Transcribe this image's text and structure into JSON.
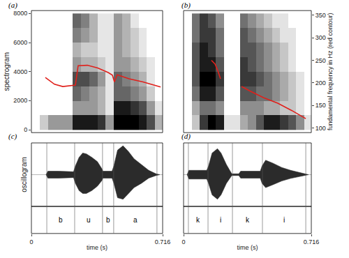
{
  "chart_data": [
    {
      "title": "(a)",
      "type": "spectrogram",
      "ylabel": "spectrogram",
      "x": [
        0.0225,
        0.0675,
        0.1125,
        0.1575,
        0.2025,
        0.2475,
        0.2925,
        0.3375,
        0.3825,
        0.4275,
        0.4725,
        0.5175,
        0.5625,
        0.6075,
        0.6525,
        0.6975
      ],
      "y": [
        500,
        1500,
        2500,
        3500,
        4500,
        5500,
        6500,
        7500
      ],
      "cells": [
        [
          0,
          0.2,
          0.4,
          0.4,
          0.4,
          0.9,
          0.9,
          0.9,
          0.8,
          0.4,
          1,
          1,
          1,
          0.9,
          0.7,
          0.3
        ],
        [
          0,
          0,
          0,
          0,
          0,
          0.4,
          0.4,
          0.4,
          0.3,
          0.1,
          0.9,
          0.9,
          0.8,
          0.7,
          0.4,
          0.1
        ],
        [
          0,
          0,
          0,
          0,
          0,
          0.6,
          0.5,
          0.4,
          0.3,
          0.1,
          0.6,
          0.6,
          0.5,
          0.4,
          0.2,
          0
        ],
        [
          0,
          0,
          0,
          0,
          0,
          0.7,
          0.7,
          0.6,
          0.4,
          0.1,
          0.6,
          0.5,
          0.4,
          0.3,
          0.1,
          0
        ],
        [
          0,
          0,
          0,
          0,
          0,
          0.4,
          0.3,
          0.3,
          0.2,
          0.1,
          0.4,
          0.4,
          0.3,
          0.2,
          0.1,
          0
        ],
        [
          0,
          0,
          0,
          0,
          0,
          0.3,
          0.2,
          0.2,
          0.1,
          0.1,
          0.4,
          0.3,
          0.2,
          0.1,
          0,
          0
        ],
        [
          0,
          0,
          0,
          0,
          0,
          0.5,
          0.4,
          0.3,
          0.1,
          0.1,
          0.4,
          0.3,
          0.2,
          0.1,
          0,
          0
        ],
        [
          0,
          0,
          0,
          0,
          0,
          0.6,
          0.5,
          0.3,
          0.1,
          0.1,
          0.4,
          0.3,
          0.1,
          0,
          0,
          0
        ]
      ],
      "xlim": [
        0,
        0.716
      ],
      "ylim": [
        -200,
        8200
      ],
      "yticks": [
        0,
        2000,
        4000,
        6000,
        8000
      ],
      "y2lim": [
        90,
        360
      ],
      "series": [
        {
          "axis": "y2",
          "color": "#e0201b",
          "x": [
            0.076,
            0.126,
            0.171,
            0.24,
            0.255,
            0.305,
            0.362,
            0.419,
            0.442,
            0.453,
            0.468,
            0.533,
            0.609,
            0.705
          ],
          "values": [
            212,
            197,
            192,
            195,
            238,
            239,
            233,
            223,
            217,
            202,
            218,
            209,
            202,
            191
          ]
        }
      ]
    },
    {
      "title": "(b)",
      "type": "spectrogram",
      "y2label": "fundamental frequency in Hz (red contour)",
      "x": [
        0.0225,
        0.0675,
        0.1125,
        0.1575,
        0.2025,
        0.2475,
        0.2925,
        0.3375,
        0.3825,
        0.4275,
        0.4725,
        0.5175,
        0.5625,
        0.6075,
        0.6525,
        0.6975
      ],
      "y": [
        500,
        1500,
        2500,
        3500,
        4500,
        5500,
        6500,
        7500
      ],
      "cells": [
        [
          0,
          0.2,
          0.7,
          0.9,
          0.8,
          0.1,
          0.1,
          0.3,
          0.4,
          0.6,
          0.8,
          0.8,
          0.7,
          0.6,
          0.4,
          0.1
        ],
        [
          0,
          0.3,
          0.5,
          0.5,
          0.4,
          0,
          0,
          0.4,
          0.4,
          0.4,
          0.3,
          0.3,
          0.2,
          0.2,
          0.1,
          0
        ],
        [
          0,
          0.5,
          0.8,
          0.8,
          0.6,
          0,
          0,
          0.6,
          0.6,
          0.5,
          0.5,
          0.4,
          0.3,
          0.2,
          0.1,
          0
        ],
        [
          0,
          0.6,
          0.9,
          0.9,
          0.7,
          0,
          0,
          0.7,
          0.7,
          0.6,
          0.5,
          0.4,
          0.3,
          0.2,
          0.1,
          0
        ],
        [
          0,
          0.6,
          0.8,
          0.8,
          0.6,
          0,
          0,
          0.7,
          0.6,
          0.5,
          0.4,
          0.3,
          0.2,
          0.1,
          0,
          0
        ],
        [
          0,
          0.6,
          0.8,
          0.7,
          0.5,
          0,
          0,
          0.6,
          0.6,
          0.5,
          0.4,
          0.3,
          0.2,
          0.1,
          0,
          0
        ],
        [
          0,
          0.5,
          0.7,
          0.7,
          0.5,
          0,
          0,
          0.6,
          0.5,
          0.4,
          0.3,
          0.2,
          0.1,
          0.1,
          0,
          0
        ],
        [
          0,
          0.5,
          0.7,
          0.6,
          0.4,
          0,
          0,
          0.5,
          0.4,
          0.3,
          0.2,
          0.1,
          0.1,
          0,
          0,
          0
        ]
      ],
      "xlim": [
        0,
        0.716
      ],
      "ylim": [
        -200,
        8200
      ],
      "y2lim": [
        90,
        360
      ],
      "y2ticks": [
        100,
        150,
        200,
        250,
        300,
        350
      ],
      "series": [
        {
          "axis": "y2",
          "color": "#e0201b",
          "x": [
            0.156,
            0.176,
            0.192,
            0.207
          ],
          "values": [
            250,
            242,
            227,
            209
          ]
        },
        {
          "axis": "y2",
          "color": "#e0201b",
          "x": [
            0.325,
            0.372,
            0.45,
            0.528,
            0.606,
            0.685
          ],
          "values": [
            192,
            182,
            167,
            155,
            139,
            121
          ]
        }
      ]
    },
    {
      "title": "(c)",
      "type": "oscillogram",
      "ylabel": "oscillogram",
      "xlabel": "time (s)",
      "xlim": [
        0,
        0.716
      ],
      "xticks": [
        0,
        0.716
      ],
      "ylim": [
        -1.1,
        1.1
      ],
      "x": [
        0.08,
        0.09,
        0.15,
        0.23,
        0.24,
        0.26,
        0.28,
        0.3,
        0.33,
        0.36,
        0.385,
        0.39,
        0.44,
        0.45,
        0.47,
        0.5,
        0.53,
        0.56,
        0.6,
        0.64,
        0.68,
        0.7
      ],
      "series": [
        {
          "color": "#2b2b2b",
          "values": [
            0,
            -0.12,
            -0.12,
            -0.1,
            -0.3,
            -0.55,
            -0.65,
            -0.65,
            -0.55,
            -0.4,
            -0.2,
            -0.12,
            -0.12,
            -0.3,
            -0.8,
            -0.85,
            -0.65,
            -0.45,
            -0.3,
            -0.12,
            -0.03,
            0
          ]
        },
        {
          "color": "#2b2b2b",
          "values": [
            0,
            0.12,
            0.12,
            0.1,
            0.3,
            0.6,
            0.75,
            0.72,
            0.6,
            0.45,
            0.2,
            0.12,
            0.12,
            0.3,
            0.85,
            1.0,
            0.8,
            0.55,
            0.35,
            0.15,
            0.03,
            0
          ]
        }
      ],
      "segments": {
        "boundaries": [
          0.084,
          0.236,
          0.388,
          0.449,
          0.685
        ],
        "labels": [
          "b",
          "u",
          "b",
          "a"
        ]
      }
    },
    {
      "title": "(d)",
      "type": "oscillogram",
      "xlabel": "time (s)",
      "xlim": [
        0,
        0.716
      ],
      "xticks": [
        0,
        0.716
      ],
      "ylim": [
        -1.1,
        1.1
      ],
      "x": [
        0.02,
        0.03,
        0.13,
        0.14,
        0.16,
        0.19,
        0.21,
        0.24,
        0.27,
        0.31,
        0.32,
        0.43,
        0.44,
        0.46,
        0.5,
        0.55,
        0.6,
        0.65,
        0.69,
        0.7
      ],
      "series": [
        {
          "color": "#2b2b2b",
          "values": [
            0,
            -0.15,
            -0.15,
            -0.3,
            -0.7,
            -0.85,
            -0.7,
            -0.3,
            -0.03,
            -0.03,
            -0.12,
            -0.12,
            -0.3,
            -0.45,
            -0.35,
            -0.22,
            -0.13,
            -0.06,
            -0.02,
            0
          ]
        },
        {
          "color": "#2b2b2b",
          "values": [
            0,
            0.15,
            0.15,
            0.3,
            0.75,
            0.9,
            0.75,
            0.35,
            0.03,
            0.03,
            0.12,
            0.12,
            0.3,
            0.5,
            0.4,
            0.25,
            0.15,
            0.07,
            0.02,
            0
          ]
        }
      ],
      "segments": {
        "boundaries": [
          0.027,
          0.137,
          0.274,
          0.442,
          0.685
        ],
        "labels": [
          "k",
          "i",
          "k",
          "i"
        ]
      }
    }
  ]
}
